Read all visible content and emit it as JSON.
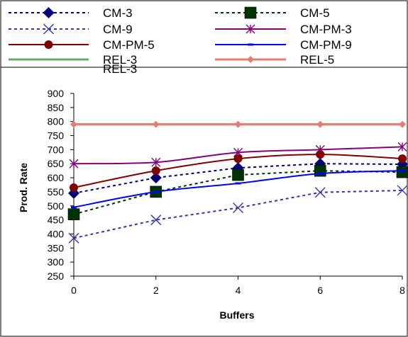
{
  "chart_data": {
    "type": "line",
    "title": "",
    "xlabel": "Buffers",
    "ylabel": "Prod. Rate",
    "x": [
      0,
      2,
      4,
      6,
      8
    ],
    "xlim": [
      0,
      8
    ],
    "ylim": [
      250,
      900
    ],
    "yticks": [
      250,
      300,
      350,
      400,
      450,
      500,
      550,
      600,
      650,
      700,
      750,
      800,
      850,
      900
    ],
    "xticks": [
      0,
      2,
      4,
      6,
      8
    ],
    "grid": false,
    "legend_position": "top",
    "series": [
      {
        "name": "CM-3",
        "values": [
          545,
          600,
          635,
          650,
          648
        ],
        "color": "#00007a",
        "dash": "dotted",
        "marker": "diamond"
      },
      {
        "name": "CM-5",
        "values": [
          470,
          550,
          610,
          625,
          620
        ],
        "color": "#003300",
        "dash": "dotted",
        "marker": "square"
      },
      {
        "name": "CM-9",
        "values": [
          385,
          450,
          493,
          548,
          555
        ],
        "color": "#3333aa",
        "dash": "dotted",
        "marker": "x"
      },
      {
        "name": "CM-PM-3",
        "values": [
          650,
          655,
          690,
          700,
          710
        ],
        "color": "#800080",
        "dash": "solid",
        "marker": "star"
      },
      {
        "name": "CM-PM-5",
        "values": [
          565,
          625,
          668,
          683,
          668
        ],
        "color": "#800000",
        "dash": "solid",
        "marker": "circle"
      },
      {
        "name": "CM-PM-9",
        "values": [
          495,
          550,
          580,
          615,
          625
        ],
        "color": "#0000ff",
        "dash": "solid",
        "marker": "dash"
      },
      {
        "name": "REL-3",
        "values": [
          790,
          790,
          790,
          790,
          790
        ],
        "color": "#66aa66",
        "dash": "solid",
        "marker": "dash"
      },
      {
        "name": "REL-5",
        "values": [
          790,
          790,
          790,
          790,
          790
        ],
        "color": "#e08070",
        "dash": "solid",
        "marker": "diamond-small"
      }
    ],
    "legend_overlap_text": "REL-3"
  }
}
